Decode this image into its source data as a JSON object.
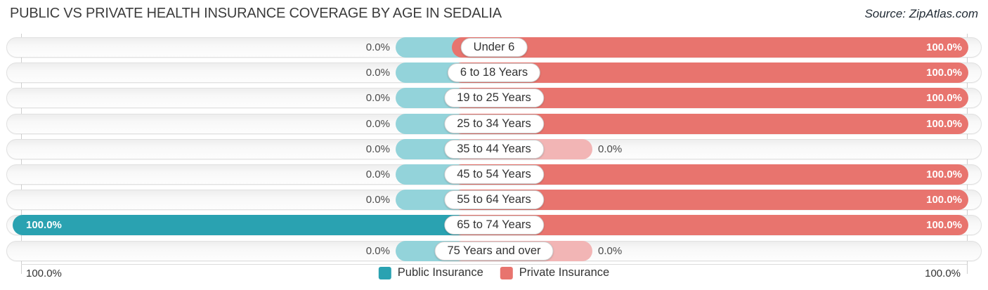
{
  "title": "PUBLIC VS PRIVATE HEALTH INSURANCE COVERAGE BY AGE IN SEDALIA",
  "source": "Source: ZipAtlas.com",
  "colors": {
    "public_full": "#2aa2b1",
    "public_stub": "#93d3da",
    "private_full": "#e8746e",
    "private_stub": "#f2b5b5"
  },
  "axis": {
    "left_label": "100.0%",
    "right_label": "100.0%"
  },
  "legend": {
    "items": [
      {
        "label": "Public Insurance",
        "color": "#2aa2b1"
      },
      {
        "label": "Private Insurance",
        "color": "#e8746e"
      }
    ]
  },
  "chart_data": {
    "type": "bar",
    "subtype": "diverging-horizontal",
    "title": "Public vs Private Health Insurance Coverage by Age in Sedalia",
    "categories": [
      "Under 6",
      "6 to 18 Years",
      "19 to 25 Years",
      "25 to 34 Years",
      "35 to 44 Years",
      "45 to 54 Years",
      "55 to 64 Years",
      "65 to 74 Years",
      "75 Years and over"
    ],
    "series": [
      {
        "name": "Public Insurance",
        "side": "left",
        "values": [
          0.0,
          0.0,
          0.0,
          0.0,
          0.0,
          0.0,
          0.0,
          100.0,
          0.0
        ]
      },
      {
        "name": "Private Insurance",
        "side": "right",
        "values": [
          100.0,
          100.0,
          100.0,
          100.0,
          0.0,
          100.0,
          100.0,
          100.0,
          0.0
        ]
      }
    ],
    "xlim": [
      -100,
      100
    ],
    "grid": "vertical-edges-only",
    "legend_position": "bottom-center",
    "rows": [
      {
        "category": "Under 6",
        "public": {
          "value": 0.0,
          "label": "0.0%"
        },
        "private": {
          "value": 100.0,
          "label": "100.0%"
        }
      },
      {
        "category": "6 to 18 Years",
        "public": {
          "value": 0.0,
          "label": "0.0%"
        },
        "private": {
          "value": 100.0,
          "label": "100.0%"
        }
      },
      {
        "category": "19 to 25 Years",
        "public": {
          "value": 0.0,
          "label": "0.0%"
        },
        "private": {
          "value": 100.0,
          "label": "100.0%"
        }
      },
      {
        "category": "25 to 34 Years",
        "public": {
          "value": 0.0,
          "label": "0.0%"
        },
        "private": {
          "value": 100.0,
          "label": "100.0%"
        }
      },
      {
        "category": "35 to 44 Years",
        "public": {
          "value": 0.0,
          "label": "0.0%"
        },
        "private": {
          "value": 0.0,
          "label": "0.0%"
        }
      },
      {
        "category": "45 to 54 Years",
        "public": {
          "value": 0.0,
          "label": "0.0%"
        },
        "private": {
          "value": 100.0,
          "label": "100.0%"
        }
      },
      {
        "category": "55 to 64 Years",
        "public": {
          "value": 0.0,
          "label": "0.0%"
        },
        "private": {
          "value": 100.0,
          "label": "100.0%"
        }
      },
      {
        "category": "65 to 74 Years",
        "public": {
          "value": 100.0,
          "label": "100.0%"
        },
        "private": {
          "value": 100.0,
          "label": "100.0%"
        }
      },
      {
        "category": "75 Years and over",
        "public": {
          "value": 0.0,
          "label": "0.0%"
        },
        "private": {
          "value": 0.0,
          "label": "0.0%"
        }
      }
    ]
  }
}
